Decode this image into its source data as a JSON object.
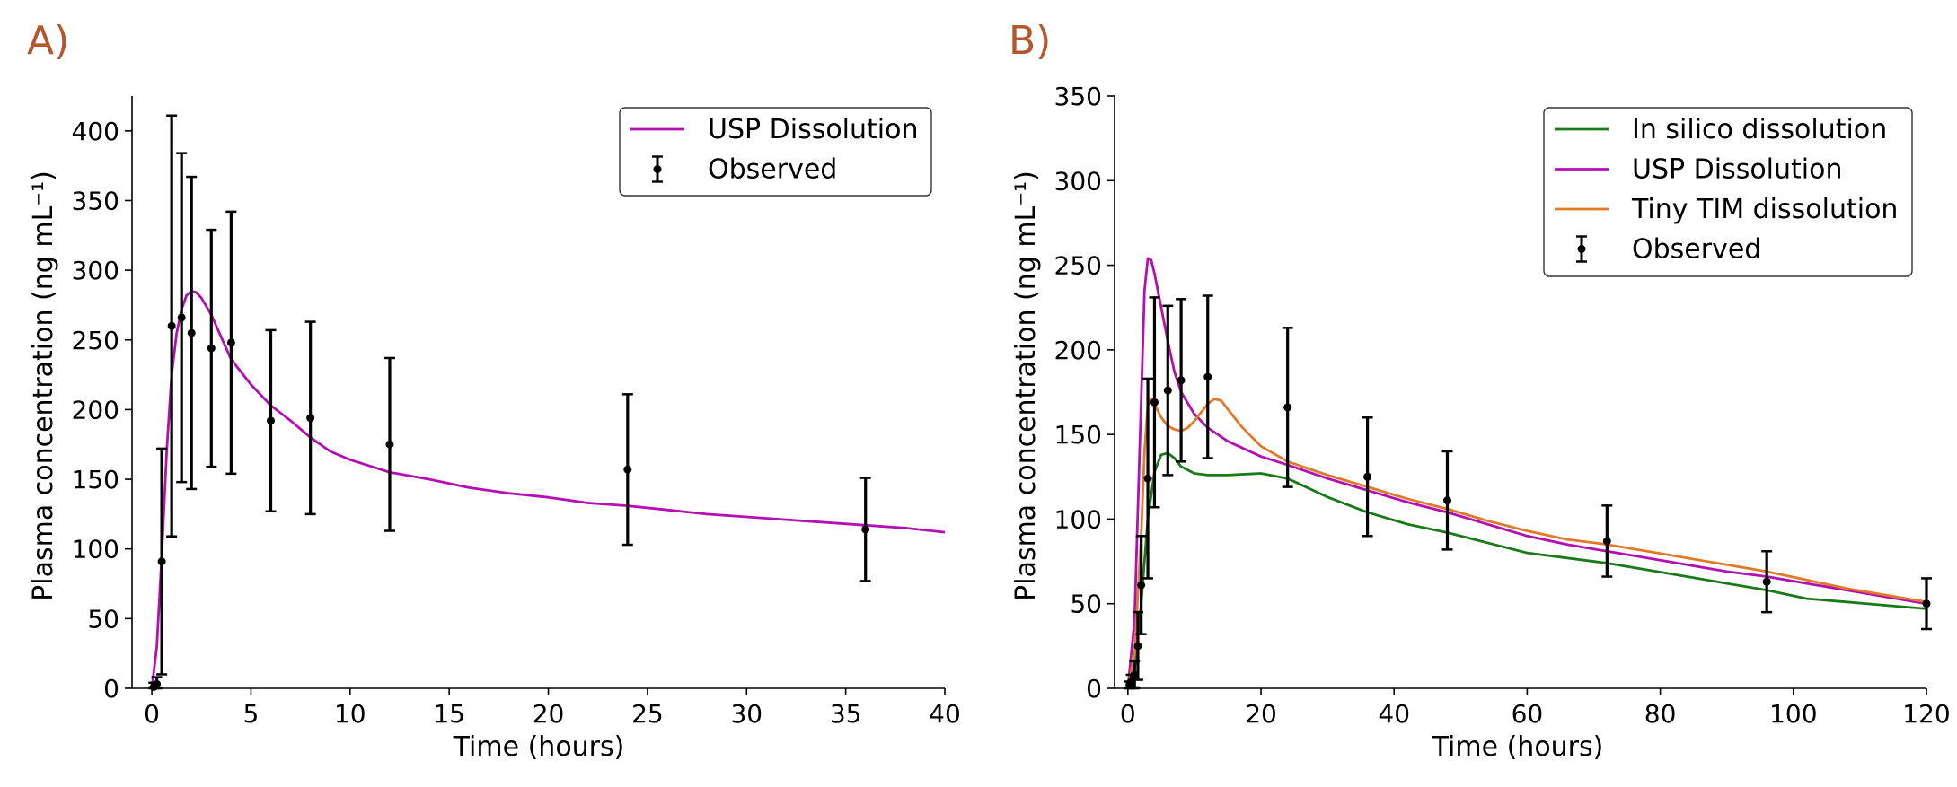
{
  "chart_data": [
    {
      "type": "line",
      "panel_label": "A)",
      "xlabel": "Time (hours)",
      "ylabel": "Plasma concentration (ng mL⁻¹)",
      "xlim": [
        -1,
        40
      ],
      "ylim": [
        0,
        425
      ],
      "xticks": [
        0,
        5,
        10,
        15,
        20,
        25,
        30,
        35,
        40
      ],
      "yticks": [
        0,
        50,
        100,
        150,
        200,
        250,
        300,
        350,
        400
      ],
      "legend_position": "top-right",
      "colors": {
        "USP Dissolution": "#b30fb3",
        "Observed": "#000000"
      },
      "series": [
        {
          "name": "USP Dissolution",
          "x": [
            0,
            0.25,
            0.5,
            0.75,
            1.0,
            1.25,
            1.5,
            1.75,
            2.0,
            2.25,
            2.5,
            3.0,
            3.5,
            4.0,
            5.0,
            6.0,
            7.0,
            8.0,
            9.0,
            10.0,
            12.0,
            14.0,
            16.0,
            18.0,
            20.0,
            22.0,
            24.0,
            26.0,
            28.0,
            30.0,
            32.0,
            34.0,
            36.0,
            38.0,
            40.0
          ],
          "y": [
            0,
            30,
            95,
            170,
            225,
            255,
            272,
            282,
            285,
            284,
            280,
            268,
            252,
            236,
            218,
            203,
            192,
            180,
            170,
            164,
            155,
            150,
            144,
            140,
            137,
            133,
            131,
            128,
            125,
            123,
            121,
            119,
            117,
            115,
            112
          ]
        }
      ],
      "observed": {
        "name": "Observed",
        "x": [
          0.1,
          0.25,
          0.5,
          1.0,
          1.5,
          2.0,
          3.0,
          4.0,
          6.0,
          8.0,
          12.0,
          24.0,
          36.0
        ],
        "y": [
          1,
          3,
          91,
          260,
          266,
          255,
          244,
          248,
          192,
          194,
          175,
          157,
          114
        ],
        "yerr": [
          3,
          5,
          81,
          151,
          118,
          112,
          85,
          94,
          65,
          69,
          62,
          54,
          37
        ]
      }
    },
    {
      "type": "line",
      "panel_label": "B)",
      "xlabel": "Time (hours)",
      "ylabel": "Plasma concentration (ng mL⁻¹)",
      "xlim": [
        -2,
        120
      ],
      "ylim": [
        0,
        350
      ],
      "xticks": [
        0,
        20,
        40,
        60,
        80,
        100,
        120
      ],
      "yticks": [
        0,
        50,
        100,
        150,
        200,
        250,
        300,
        350
      ],
      "legend_position": "top-right",
      "colors": {
        "In silico dissolution": "#1a7a1a",
        "USP Dissolution": "#b30fb3",
        "Tiny TIM dissolution": "#e07a28",
        "Observed": "#000000"
      },
      "series": [
        {
          "name": "In silico dissolution",
          "x": [
            0,
            1,
            2,
            3,
            4,
            5,
            6,
            7,
            8,
            10,
            12,
            15,
            20,
            24,
            30,
            36,
            42,
            48,
            54,
            60,
            66,
            72,
            78,
            84,
            90,
            96,
            102,
            108,
            114,
            120
          ],
          "y": [
            0,
            10,
            50,
            100,
            128,
            138,
            139,
            136,
            131,
            127,
            126,
            126,
            127,
            124,
            113,
            104,
            97,
            92,
            86,
            80,
            77,
            74,
            70,
            66,
            62,
            58,
            53,
            51,
            49,
            47
          ]
        },
        {
          "name": "USP Dissolution",
          "x": [
            0,
            1,
            2,
            2.5,
            3,
            3.5,
            4,
            5,
            6,
            7,
            8,
            10,
            12,
            15,
            20,
            24,
            30,
            36,
            42,
            48,
            54,
            60,
            66,
            72,
            78,
            84,
            90,
            96,
            102,
            108,
            114,
            120
          ],
          "y": [
            0,
            40,
            170,
            235,
            254,
            253,
            245,
            225,
            205,
            187,
            175,
            162,
            154,
            146,
            137,
            132,
            124,
            117,
            110,
            104,
            97,
            90,
            85,
            81,
            77,
            73,
            69,
            66,
            62,
            58,
            54,
            50
          ],
          "y_note": ""
        },
        {
          "name": "Tiny TIM dissolution",
          "x": [
            0,
            1,
            2,
            2.5,
            3,
            3.5,
            4,
            5,
            6,
            7,
            8,
            9,
            10,
            11,
            12,
            13,
            14,
            15,
            17,
            20,
            24,
            30,
            36,
            42,
            48,
            54,
            60,
            66,
            72,
            78,
            84,
            90,
            96,
            102,
            108,
            114,
            120
          ],
          "y": [
            0,
            20,
            90,
            140,
            167,
            171,
            168,
            160,
            155,
            153,
            152,
            154,
            158,
            163,
            168,
            171,
            170,
            165,
            155,
            143,
            134,
            126,
            119,
            112,
            106,
            99,
            93,
            88,
            85,
            81,
            77,
            73,
            69,
            64,
            59,
            55,
            51
          ]
        }
      ],
      "observed": {
        "name": "Observed",
        "x": [
          0.25,
          0.5,
          1.0,
          1.5,
          2.0,
          3.0,
          4.0,
          6.0,
          8.0,
          12.0,
          24.0,
          36.0,
          48.0,
          72.0,
          96.0,
          120.0
        ],
        "y": [
          2,
          4,
          8,
          25,
          61,
          124,
          169,
          176,
          182,
          184,
          166,
          125,
          111,
          87,
          63,
          50
        ],
        "yerr": [
          2,
          4,
          8,
          20,
          29,
          59,
          62,
          50,
          48,
          48,
          47,
          35,
          29,
          21,
          18,
          15
        ]
      }
    }
  ]
}
